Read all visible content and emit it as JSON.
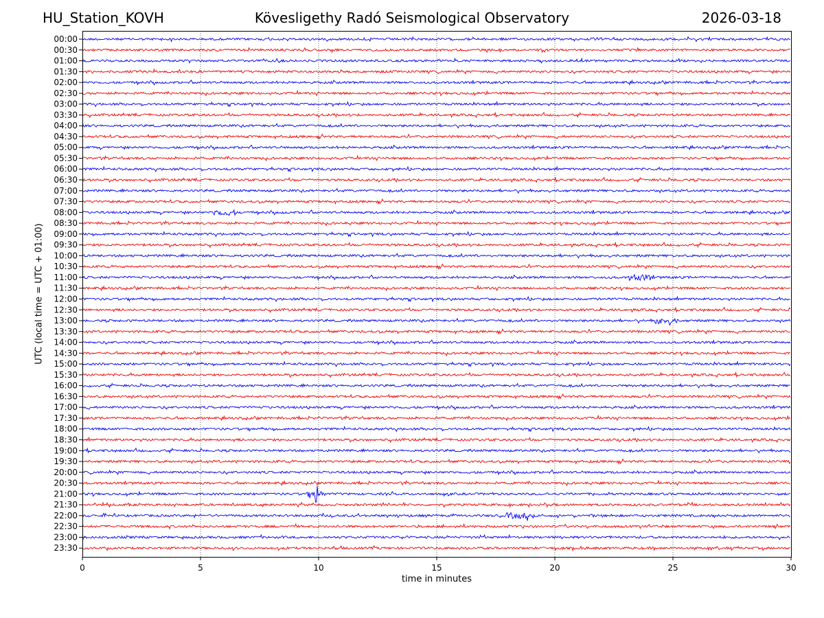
{
  "header": {
    "station": "HU_Station_KOVH",
    "title": "Kövesligethy Radó Seismological Observatory",
    "date": "2026-03-18"
  },
  "colors": {
    "trace_a": "#0000ee",
    "trace_b": "#ee0000",
    "grid": "#000000"
  },
  "chart_data": {
    "type": "line",
    "title": "Kövesligethy Radó Seismological Observatory",
    "xlabel": "time in minutes",
    "ylabel": "UTC (local time = UTC + 01:00)",
    "xlim": [
      0,
      30
    ],
    "xticks": [
      0,
      5,
      10,
      15,
      20,
      25,
      30
    ],
    "grid": "vertical dotted at 5-minute ticks",
    "rows": [
      "00:00",
      "00:30",
      "01:00",
      "01:30",
      "02:00",
      "02:30",
      "03:00",
      "03:30",
      "04:00",
      "04:30",
      "05:00",
      "05:30",
      "06:00",
      "06:30",
      "07:00",
      "07:30",
      "08:00",
      "08:30",
      "09:00",
      "09:30",
      "10:00",
      "10:30",
      "11:00",
      "11:30",
      "12:00",
      "12:30",
      "13:00",
      "13:30",
      "14:00",
      "14:30",
      "15:00",
      "15:30",
      "16:00",
      "16:30",
      "17:00",
      "17:30",
      "18:00",
      "18:30",
      "19:00",
      "19:30",
      "20:00",
      "20:30",
      "21:00",
      "21:30",
      "22:00",
      "22:30",
      "23:00",
      "23:30"
    ],
    "series_colors": [
      "blue",
      "red"
    ],
    "events": [
      {
        "row": "08:00",
        "minute": 6.0,
        "note": "noise burst"
      },
      {
        "row": "11:00",
        "minute": 23.6,
        "note": "noise burst"
      },
      {
        "row": "13:00",
        "minute": 24.7,
        "note": "noise burst"
      },
      {
        "row": "21:00",
        "minute": 9.9,
        "note": "spike"
      },
      {
        "row": "22:00",
        "minute": 18.4,
        "note": "event burst"
      }
    ]
  }
}
